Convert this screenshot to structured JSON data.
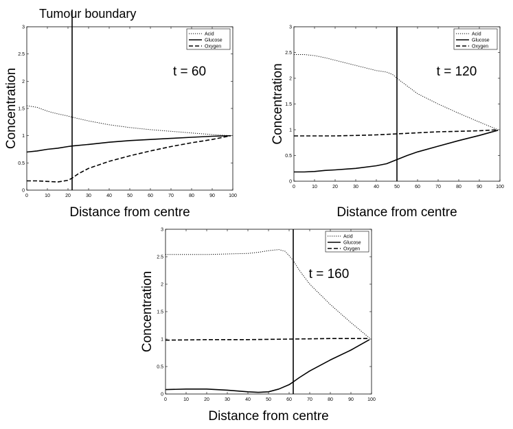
{
  "annotation": "Tumour boundary",
  "chart_data": [
    {
      "type": "line",
      "time_label": "t = 60",
      "xlabel": "Distance from centre",
      "ylabel": "Concentration",
      "xlim": [
        0,
        100
      ],
      "ylim": [
        0,
        3
      ],
      "xticks": [
        "0",
        "10",
        "20",
        "30",
        "40",
        "50",
        "60",
        "70",
        "80",
        "90",
        "100"
      ],
      "yticks": [
        "0",
        "0.5",
        "1",
        "1.5",
        "2",
        "2.5",
        "3"
      ],
      "boundary_x": 22,
      "legend_position": "top-right",
      "series": [
        {
          "name": "Acid",
          "style": "dotted",
          "x": [
            0,
            5,
            10,
            15,
            20,
            22,
            30,
            40,
            50,
            60,
            70,
            80,
            90,
            99
          ],
          "y": [
            1.55,
            1.52,
            1.45,
            1.4,
            1.36,
            1.34,
            1.27,
            1.2,
            1.15,
            1.11,
            1.08,
            1.05,
            1.02,
            1.0
          ]
        },
        {
          "name": "Glucose",
          "style": "solid",
          "x": [
            0,
            5,
            10,
            15,
            20,
            22,
            30,
            40,
            50,
            60,
            70,
            80,
            90,
            99
          ],
          "y": [
            0.7,
            0.72,
            0.75,
            0.77,
            0.8,
            0.81,
            0.84,
            0.88,
            0.91,
            0.93,
            0.95,
            0.97,
            0.99,
            1.0
          ]
        },
        {
          "name": "Oxygen",
          "style": "dashed",
          "x": [
            0,
            5,
            10,
            15,
            20,
            22,
            25,
            30,
            40,
            50,
            60,
            70,
            80,
            90,
            99
          ],
          "y": [
            0.17,
            0.17,
            0.16,
            0.15,
            0.18,
            0.22,
            0.3,
            0.4,
            0.53,
            0.63,
            0.72,
            0.8,
            0.87,
            0.93,
            1.0
          ]
        }
      ]
    },
    {
      "type": "line",
      "time_label": "t = 120",
      "xlabel": "Distance from centre",
      "ylabel": "Concentration",
      "xlim": [
        0,
        100
      ],
      "ylim": [
        0,
        3
      ],
      "xticks": [
        "0",
        "10",
        "20",
        "30",
        "40",
        "50",
        "60",
        "70",
        "80",
        "90",
        "100"
      ],
      "yticks": [
        "0",
        "0.5",
        "1",
        "1.5",
        "2",
        "2.5",
        "3"
      ],
      "boundary_x": 50,
      "legend_position": "top-right",
      "series": [
        {
          "name": "Acid",
          "style": "dotted",
          "x": [
            0,
            5,
            10,
            15,
            20,
            30,
            40,
            45,
            48,
            50,
            55,
            60,
            70,
            80,
            90,
            99
          ],
          "y": [
            2.46,
            2.46,
            2.44,
            2.4,
            2.35,
            2.25,
            2.15,
            2.12,
            2.07,
            2.0,
            1.85,
            1.7,
            1.5,
            1.32,
            1.15,
            1.0
          ]
        },
        {
          "name": "Glucose",
          "style": "solid",
          "x": [
            0,
            5,
            10,
            15,
            20,
            30,
            40,
            45,
            50,
            55,
            60,
            70,
            80,
            90,
            99
          ],
          "y": [
            0.18,
            0.18,
            0.19,
            0.21,
            0.22,
            0.25,
            0.3,
            0.34,
            0.42,
            0.5,
            0.57,
            0.68,
            0.79,
            0.89,
            0.99
          ]
        },
        {
          "name": "Oxygen",
          "style": "dashed",
          "x": [
            0,
            10,
            20,
            30,
            40,
            50,
            60,
            70,
            80,
            90,
            99
          ],
          "y": [
            0.88,
            0.88,
            0.88,
            0.89,
            0.9,
            0.92,
            0.94,
            0.96,
            0.97,
            0.98,
            1.0
          ]
        }
      ]
    },
    {
      "type": "line",
      "time_label": "t = 160",
      "xlabel": "Distance from centre",
      "ylabel": "Concentration",
      "xlim": [
        0,
        100
      ],
      "ylim": [
        0,
        3
      ],
      "xticks": [
        "0",
        "10",
        "20",
        "30",
        "40",
        "50",
        "60",
        "70",
        "80",
        "90",
        "100"
      ],
      "yticks": [
        "0",
        "0.5",
        "1",
        "1.5",
        "2",
        "2.5",
        "3"
      ],
      "boundary_x": 62,
      "legend_position": "top-right",
      "series": [
        {
          "name": "Acid",
          "style": "dotted",
          "x": [
            0,
            10,
            20,
            30,
            40,
            45,
            50,
            55,
            58,
            60,
            62,
            65,
            70,
            80,
            90,
            99
          ],
          "y": [
            2.54,
            2.54,
            2.54,
            2.55,
            2.56,
            2.58,
            2.61,
            2.63,
            2.6,
            2.52,
            2.43,
            2.25,
            2.0,
            1.63,
            1.3,
            1.02
          ]
        },
        {
          "name": "Glucose",
          "style": "solid",
          "x": [
            0,
            10,
            20,
            30,
            40,
            45,
            50,
            55,
            60,
            62,
            65,
            70,
            80,
            90,
            99
          ],
          "y": [
            0.08,
            0.09,
            0.09,
            0.07,
            0.04,
            0.03,
            0.04,
            0.09,
            0.17,
            0.22,
            0.3,
            0.42,
            0.62,
            0.8,
            0.99
          ]
        },
        {
          "name": "Oxygen",
          "style": "dashed",
          "x": [
            0,
            20,
            40,
            60,
            80,
            99
          ],
          "y": [
            0.98,
            0.99,
            0.99,
            1.0,
            1.01,
            1.01
          ]
        }
      ]
    }
  ]
}
